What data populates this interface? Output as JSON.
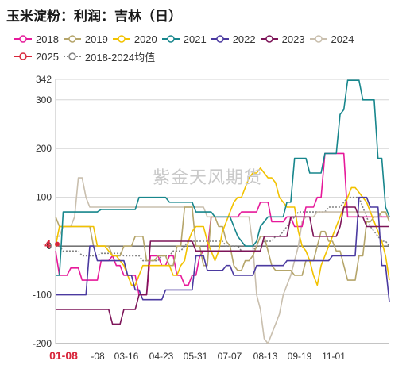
{
  "header": {
    "title": "玉米淀粉：利润：吉林（日）"
  },
  "watermark": "紫金天风期货",
  "chart_data": {
    "type": "line",
    "title": "玉米淀粉：利润：吉林（日）",
    "xlabel": "",
    "ylabel": "",
    "x_tick_labels": [
      "01-08",
      "-08",
      "03-16",
      "04-23",
      "05-31",
      "07-07",
      "08-13",
      "09-19",
      "11-01"
    ],
    "y_tick_labels": [
      "342",
      "300",
      "200",
      "100",
      "0",
      "-100",
      "-200"
    ],
    "ylim": [
      -200,
      342
    ],
    "last_value_marker": {
      "label": "4",
      "value": 4
    },
    "grid": true,
    "legend_position": "top",
    "series": [
      {
        "name": "2018",
        "color": "#e6199a",
        "dashed": false,
        "values": [
          -10,
          -60,
          -60,
          -60,
          -45,
          -45,
          -45,
          -70,
          -70,
          -70,
          -70,
          -70,
          -30,
          -30,
          -30,
          -20,
          -40,
          -40,
          -60,
          -60,
          -60,
          -60,
          -100,
          -100,
          -100,
          -20,
          -20,
          -20,
          -40,
          -40,
          -20,
          -20,
          -60,
          -60,
          -80,
          -80,
          -60,
          -60,
          -20,
          -10,
          -10,
          60,
          60,
          60,
          60,
          60,
          60,
          60,
          60,
          70,
          70,
          70,
          70,
          70,
          90,
          90,
          90,
          50,
          50,
          50,
          50,
          60,
          60,
          40,
          40,
          40,
          80,
          80,
          80,
          100,
          100,
          190,
          190,
          190,
          190,
          190,
          190,
          60,
          60,
          60,
          60,
          60,
          60,
          60,
          60,
          60,
          60,
          60,
          60
        ]
      },
      {
        "name": "2019",
        "color": "#b5a56a",
        "dashed": false,
        "values": [
          60,
          40,
          40,
          40,
          40,
          40,
          40,
          40,
          40,
          40,
          0,
          0,
          0,
          0,
          0,
          -20,
          -20,
          -20,
          0,
          0,
          0,
          20,
          20,
          20,
          -30,
          -30,
          -30,
          -20,
          -20,
          -20,
          -40,
          -40,
          0,
          0,
          80,
          80,
          80,
          0,
          0,
          -40,
          -40,
          60,
          60,
          40,
          40,
          10,
          0,
          -40,
          -50,
          -50,
          -30,
          -30,
          -20,
          0,
          20,
          20,
          -10,
          -40,
          -50,
          -50,
          -50,
          -50,
          -50,
          -60,
          -60,
          -60,
          -30,
          -30,
          -30,
          0,
          30,
          30,
          10,
          10,
          -10,
          -10,
          -40,
          -70,
          -70,
          -70,
          -20,
          -20,
          50,
          50,
          60,
          60,
          70,
          70,
          50
        ]
      },
      {
        "name": "2020",
        "color": "#f2c200",
        "dashed": false,
        "values": [
          0,
          40,
          40,
          40,
          40,
          40,
          40,
          40,
          40,
          40,
          40,
          0,
          0,
          0,
          -10,
          -20,
          -20,
          -30,
          -40,
          -60,
          -80,
          -80,
          -60,
          -40,
          -40,
          -40,
          -40,
          -40,
          -40,
          -40,
          -40,
          -60,
          -60,
          -40,
          -30,
          10,
          30,
          40,
          40,
          40,
          10,
          -10,
          -30,
          -10,
          30,
          50,
          70,
          90,
          100,
          100,
          120,
          140,
          150,
          150,
          160,
          150,
          140,
          140,
          130,
          100,
          90,
          80,
          80,
          80,
          30,
          0,
          -10,
          -30,
          -60,
          -80,
          -40,
          -20,
          0,
          20,
          40,
          60,
          80,
          100,
          120,
          120,
          110,
          100,
          90,
          70,
          50,
          30,
          10,
          -20,
          -70
        ]
      },
      {
        "name": "2021",
        "color": "#17868c",
        "dashed": false,
        "values": [
          -60,
          -60,
          70,
          70,
          70,
          70,
          70,
          70,
          70,
          70,
          70,
          70,
          75,
          75,
          75,
          75,
          75,
          75,
          75,
          75,
          75,
          75,
          100,
          100,
          100,
          100,
          100,
          100,
          100,
          100,
          90,
          90,
          90,
          90,
          90,
          90,
          90,
          70,
          70,
          70,
          70,
          70,
          60,
          60,
          60,
          60,
          60,
          40,
          20,
          10,
          0,
          0,
          0,
          10,
          40,
          50,
          60,
          60,
          60,
          60,
          60,
          90,
          90,
          180,
          180,
          180,
          180,
          150,
          150,
          150,
          150,
          190,
          190,
          190,
          190,
          270,
          280,
          340,
          340,
          340,
          340,
          300,
          300,
          300,
          300,
          180,
          180,
          80,
          60
        ]
      },
      {
        "name": "2022",
        "color": "#4b3aa0",
        "dashed": false,
        "values": [
          -100,
          -100,
          -100,
          -100,
          -100,
          -100,
          -100,
          -100,
          -100,
          0,
          0,
          -30,
          -30,
          -30,
          -30,
          -30,
          -30,
          -30,
          -30,
          -60,
          -60,
          -90,
          -90,
          -110,
          -110,
          -110,
          -110,
          -110,
          -110,
          -90,
          -90,
          -90,
          -90,
          -90,
          -90,
          -90,
          -90,
          -20,
          -20,
          -20,
          -50,
          -50,
          -50,
          -50,
          -50,
          -40,
          -40,
          -60,
          -60,
          -60,
          -60,
          -60,
          -60,
          -40,
          -40,
          -40,
          -40,
          -40,
          -40,
          -40,
          -40,
          -30,
          -30,
          -30,
          -30,
          -30,
          -30,
          -30,
          -30,
          -30,
          -30,
          -30,
          -30,
          -20,
          -20,
          -20,
          -20,
          -20,
          -20,
          -20,
          100,
          100,
          100,
          80,
          80,
          80,
          -40,
          -40,
          -115
        ]
      },
      {
        "name": "2023",
        "color": "#7d1559",
        "dashed": false,
        "values": [
          -130,
          -130,
          -130,
          -130,
          -130,
          -130,
          -130,
          -130,
          -130,
          -130,
          -130,
          -130,
          -130,
          -130,
          -130,
          -160,
          -160,
          -160,
          -130,
          -130,
          -130,
          -130,
          -100,
          -100,
          -100,
          10,
          10,
          10,
          10,
          10,
          10,
          10,
          10,
          10,
          10,
          10,
          10,
          -10,
          -10,
          -10,
          -10,
          -10,
          -10,
          -10,
          -10,
          -10,
          -10,
          -10,
          -10,
          -10,
          -10,
          -10,
          -10,
          -10,
          -10,
          20,
          20,
          20,
          20,
          20,
          20,
          20,
          60,
          60,
          60,
          60,
          60,
          60,
          20,
          20,
          20,
          20,
          20,
          20,
          20,
          40,
          80,
          80,
          80,
          80,
          60,
          60,
          40,
          40,
          40,
          40,
          40,
          40,
          40
        ]
      },
      {
        "name": "2024",
        "color": "#c9bfae",
        "dashed": false,
        "values": [
          20,
          20,
          40,
          40,
          40,
          60,
          140,
          140,
          100,
          80,
          80,
          80,
          80,
          80,
          80,
          80,
          80,
          80,
          80,
          80,
          80,
          80,
          80,
          80,
          80,
          80,
          80,
          80,
          80,
          80,
          80,
          80,
          80,
          80,
          80,
          80,
          80,
          80,
          80,
          80,
          60,
          60,
          60,
          60,
          60,
          60,
          60,
          60,
          60,
          60,
          60,
          60,
          0,
          -100,
          -130,
          -190,
          -200,
          -180,
          -160,
          -140,
          -100,
          -80,
          -60,
          -30,
          0,
          50,
          60,
          60,
          60,
          70,
          70,
          70,
          70,
          70,
          70,
          70,
          70,
          70,
          70,
          70,
          70,
          70,
          70,
          70,
          70,
          70,
          60,
          60,
          60
        ]
      },
      {
        "name": "2025",
        "color": "#d8263b",
        "dashed": false,
        "values": [
          4
        ]
      },
      {
        "name": "2018-2024均值",
        "color": "#808080",
        "dashed": true,
        "values": [
          0,
          0,
          -10,
          -10,
          -10,
          -10,
          -10,
          -20,
          -20,
          -20,
          -20,
          -20,
          -15,
          -15,
          -15,
          -15,
          -15,
          -15,
          -20,
          -20,
          -20,
          -20,
          -20,
          -30,
          -30,
          -30,
          -30,
          -30,
          -20,
          -20,
          -20,
          -10,
          -10,
          -10,
          0,
          10,
          10,
          10,
          10,
          10,
          10,
          10,
          10,
          10,
          10,
          0,
          0,
          0,
          0,
          -10,
          -10,
          -10,
          -10,
          0,
          0,
          10,
          10,
          10,
          20,
          20,
          30,
          40,
          50,
          60,
          70,
          70,
          70,
          70,
          70,
          70,
          70,
          70,
          80,
          80,
          80,
          80,
          90,
          100,
          100,
          100,
          100,
          80,
          60,
          40,
          30,
          20,
          10,
          10,
          0
        ]
      }
    ]
  }
}
